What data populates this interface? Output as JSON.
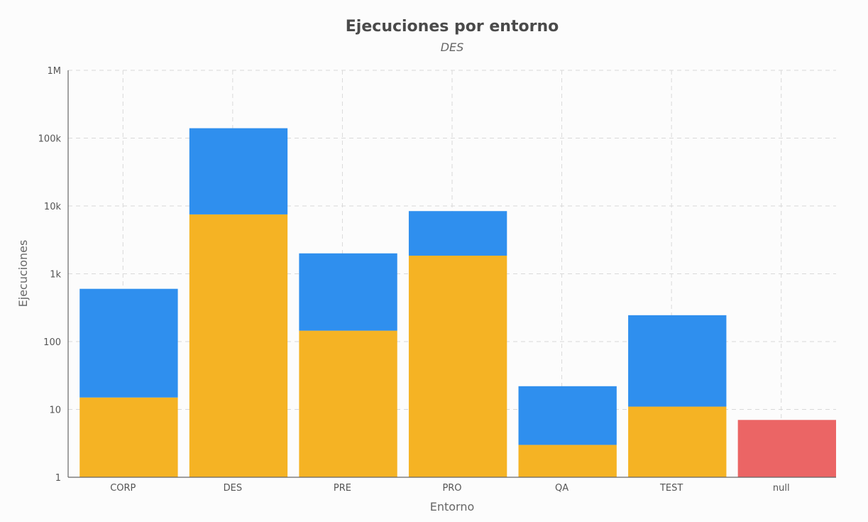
{
  "chart_data": {
    "type": "bar",
    "stacked": true,
    "title": "Ejecuciones por entorno",
    "subtitle": "DES",
    "xlabel": "Entorno",
    "ylabel": "Ejecuciones",
    "yscale": "log",
    "ylim": [
      1,
      1000000
    ],
    "yticks": [
      {
        "value": 1,
        "label": "1"
      },
      {
        "value": 10,
        "label": "10"
      },
      {
        "value": 100,
        "label": "100"
      },
      {
        "value": 1000,
        "label": "1k"
      },
      {
        "value": 10000,
        "label": "10k"
      },
      {
        "value": 100000,
        "label": "100k"
      },
      {
        "value": 1000000,
        "label": "1M"
      }
    ],
    "categories": [
      "CORP",
      "DES",
      "PRE",
      "PRO",
      "QA",
      "TEST",
      "null"
    ],
    "series": [
      {
        "color": "#f5b324",
        "values": [
          15,
          7500,
          145,
          1850,
          3,
          11,
          0
        ]
      },
      {
        "color": "#2f8fee",
        "values": [
          585,
          132500,
          1855,
          6550,
          19,
          234,
          0
        ]
      },
      {
        "color": "#eb6565",
        "values": [
          0,
          0,
          0,
          0,
          0,
          0,
          7
        ]
      }
    ],
    "grid": true,
    "legend": "none"
  }
}
